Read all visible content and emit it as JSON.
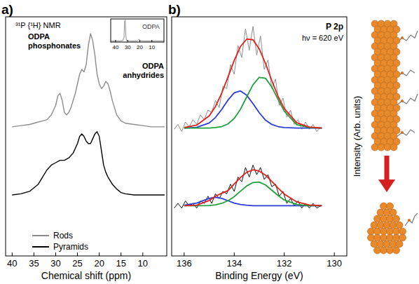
{
  "chart_data": [
    {
      "type": "line",
      "panel_label": "a)",
      "x_label": "Chemical shift (ppm)",
      "annotations": [
        "³¹P {¹H} NMR",
        "ODPA phosphonates",
        "ODPA anhydrides"
      ],
      "xlim": [
        41.5,
        4.5
      ],
      "xticks": [
        40,
        35,
        30,
        25,
        20,
        15,
        10
      ],
      "ylim": [
        0,
        1
      ],
      "grid": false,
      "legend": "bottom-left",
      "tick_labels": "x",
      "series": [
        {
          "name": "Rods",
          "color": "#8c8c8c",
          "x": [
            40,
            38,
            36,
            34,
            33,
            32,
            31,
            30,
            29.5,
            29,
            28.5,
            28,
            27.5,
            27,
            26.5,
            26,
            25.5,
            25,
            24.5,
            24,
            23.5,
            23,
            22.5,
            22,
            21.5,
            21,
            20.5,
            20,
            19.5,
            19,
            18.5,
            18,
            17.5,
            17,
            16.5,
            16,
            15,
            14,
            12,
            10,
            8,
            6,
            5
          ],
          "values": [
            0.54,
            0.545,
            0.55,
            0.56,
            0.565,
            0.57,
            0.59,
            0.63,
            0.67,
            0.68,
            0.65,
            0.6,
            0.59,
            0.6,
            0.62,
            0.65,
            0.68,
            0.72,
            0.76,
            0.78,
            0.77,
            0.8,
            0.88,
            0.93,
            0.9,
            0.84,
            0.76,
            0.72,
            0.7,
            0.71,
            0.73,
            0.72,
            0.69,
            0.65,
            0.62,
            0.59,
            0.565,
            0.555,
            0.55,
            0.545,
            0.54,
            0.54,
            0.54
          ]
        },
        {
          "name": "Pyramids",
          "color": "#000000",
          "x": [
            40,
            38,
            36,
            34,
            33,
            32,
            31,
            30,
            29,
            28,
            27,
            26,
            25,
            24.5,
            24,
            23.5,
            23,
            22.5,
            22,
            21.5,
            21,
            20.5,
            20,
            19.5,
            19,
            18.5,
            18,
            17,
            16,
            15,
            14,
            12,
            10,
            8,
            5
          ],
          "values": [
            0.255,
            0.26,
            0.27,
            0.3,
            0.33,
            0.36,
            0.38,
            0.39,
            0.4,
            0.4,
            0.41,
            0.43,
            0.47,
            0.5,
            0.51,
            0.5,
            0.48,
            0.47,
            0.47,
            0.49,
            0.51,
            0.52,
            0.5,
            0.44,
            0.38,
            0.35,
            0.33,
            0.3,
            0.28,
            0.265,
            0.26,
            0.255,
            0.255,
            0.255,
            0.255
          ]
        }
      ]
    },
    {
      "type": "line",
      "title": "ODPA",
      "xlim": [
        44,
        0
      ],
      "xticks": [
        40,
        30,
        20,
        10
      ],
      "ylim": [
        0,
        1
      ],
      "grid": false,
      "tick_labels": "x",
      "series": [
        {
          "color": "#8c8c8c",
          "x": [
            44,
            36,
            34,
            33,
            32.5,
            32,
            31.5,
            31,
            28,
            22,
            21,
            20.5,
            20,
            15,
            10,
            0
          ],
          "values": [
            0.05,
            0.05,
            0.06,
            0.2,
            0.9,
            0.95,
            0.3,
            0.07,
            0.05,
            0.05,
            0.1,
            0.12,
            0.06,
            0.05,
            0.05,
            0.05
          ]
        }
      ]
    },
    {
      "type": "line",
      "panel_label": "b)",
      "x_label": "Binding Energy (eV)",
      "y_label": "Intensity (Arb. units)",
      "annotations": [
        "P 2p",
        "hν = 620 eV"
      ],
      "xlim": [
        136.5,
        129.5
      ],
      "xticks": [
        136,
        134,
        132,
        130
      ],
      "ylim": [
        0,
        1
      ],
      "grid": false,
      "tick_labels": "x",
      "series": [
        {
          "color": "#8c8c8c",
          "x": [
            136.4,
            136.25,
            136.1,
            135.95,
            135.8,
            135.65,
            135.5,
            135.35,
            135.2,
            135.05,
            134.9,
            134.75,
            134.6,
            134.45,
            134.3,
            134.15,
            134.0,
            133.85,
            133.7,
            133.55,
            133.4,
            133.25,
            133.1,
            132.95,
            132.8,
            132.65,
            132.5,
            132.35,
            132.2,
            132.05,
            131.9,
            131.75,
            131.6,
            131.45,
            131.3,
            131.15,
            131.0,
            130.85,
            130.7,
            130.55
          ],
          "values": [
            0.53,
            0.55,
            0.52,
            0.56,
            0.54,
            0.57,
            0.55,
            0.59,
            0.57,
            0.61,
            0.6,
            0.65,
            0.62,
            0.71,
            0.7,
            0.8,
            0.76,
            0.88,
            0.83,
            0.95,
            0.86,
            0.96,
            0.84,
            0.92,
            0.78,
            0.82,
            0.7,
            0.74,
            0.63,
            0.66,
            0.58,
            0.61,
            0.55,
            0.57,
            0.53,
            0.56,
            0.53,
            0.55,
            0.52,
            0.54
          ]
        },
        {
          "color": "#111111",
          "x": [
            136.4,
            136.25,
            136.1,
            135.95,
            135.8,
            135.65,
            135.5,
            135.35,
            135.2,
            135.05,
            134.9,
            134.75,
            134.6,
            134.45,
            134.3,
            134.15,
            134.0,
            133.85,
            133.7,
            133.55,
            133.4,
            133.25,
            133.1,
            132.95,
            132.8,
            132.65,
            132.5,
            132.35,
            132.2,
            132.05,
            131.9,
            131.75,
            131.6,
            131.45,
            131.3,
            131.15,
            131.0,
            130.85,
            130.7,
            130.55
          ],
          "values": [
            0.2,
            0.22,
            0.2,
            0.23,
            0.21,
            0.22,
            0.2,
            0.23,
            0.22,
            0.25,
            0.22,
            0.26,
            0.24,
            0.27,
            0.26,
            0.3,
            0.27,
            0.33,
            0.31,
            0.37,
            0.33,
            0.38,
            0.34,
            0.37,
            0.32,
            0.34,
            0.29,
            0.3,
            0.25,
            0.27,
            0.22,
            0.24,
            0.21,
            0.23,
            0.2,
            0.22,
            0.2,
            0.22,
            0.2,
            0.21
          ]
        },
        {
          "color": "#2b3cd8",
          "x": [
            136,
            135.5,
            135,
            134.75,
            134.5,
            134.25,
            134,
            133.75,
            133.5,
            133.25,
            133,
            132.75,
            132.5,
            132.25,
            132,
            131.5,
            131,
            130.5
          ],
          "values": [
            0.535,
            0.538,
            0.556,
            0.579,
            0.613,
            0.652,
            0.682,
            0.69,
            0.672,
            0.637,
            0.599,
            0.568,
            0.55,
            0.541,
            0.537,
            0.535,
            0.535,
            0.535
          ]
        },
        {
          "color": "#1fa03a",
          "x": [
            136,
            135.5,
            135,
            134.75,
            134.5,
            134.25,
            134,
            133.75,
            133.5,
            133.25,
            133,
            132.75,
            132.5,
            132.25,
            132,
            131.5,
            131,
            130.5
          ],
          "values": [
            0.535,
            0.535,
            0.535,
            0.537,
            0.541,
            0.552,
            0.575,
            0.614,
            0.665,
            0.716,
            0.747,
            0.743,
            0.707,
            0.655,
            0.605,
            0.549,
            0.537,
            0.535
          ]
        },
        {
          "color": "#e0201c",
          "x": [
            136,
            135.5,
            135,
            134.75,
            134.5,
            134.25,
            134,
            133.75,
            133.5,
            133.25,
            133,
            132.75,
            132.5,
            132.25,
            132,
            131.5,
            131,
            130.5
          ],
          "values": [
            0.537,
            0.547,
            0.586,
            0.625,
            0.681,
            0.748,
            0.818,
            0.876,
            0.907,
            0.904,
            0.866,
            0.805,
            0.734,
            0.668,
            0.616,
            0.557,
            0.539,
            0.535
          ]
        },
        {
          "color": "#2b3cd8",
          "x": [
            136,
            135.5,
            135,
            134.75,
            134.5,
            134.25,
            134,
            133.75,
            133.5,
            133.25,
            133,
            132.75,
            132.5,
            132.25,
            132,
            131.5,
            131,
            130.5
          ],
          "values": [
            0.212,
            0.221,
            0.241,
            0.245,
            0.241,
            0.231,
            0.221,
            0.215,
            0.212,
            0.21,
            0.21,
            0.21,
            0.21,
            0.21,
            0.21,
            0.21,
            0.21,
            0.21
          ]
        },
        {
          "color": "#1fa03a",
          "x": [
            136,
            135.5,
            135,
            134.75,
            134.5,
            134.25,
            134,
            133.75,
            133.5,
            133.25,
            133,
            132.75,
            132.5,
            132.25,
            132,
            131.5,
            131,
            130.5
          ],
          "values": [
            0.21,
            0.21,
            0.211,
            0.214,
            0.22,
            0.231,
            0.248,
            0.271,
            0.293,
            0.307,
            0.309,
            0.297,
            0.275,
            0.253,
            0.234,
            0.215,
            0.21,
            0.21
          ]
        },
        {
          "color": "#e0201c",
          "x": [
            136,
            135.5,
            135,
            134.75,
            134.5,
            134.25,
            134,
            133.75,
            133.5,
            133.25,
            133,
            132.75,
            132.5,
            132.25,
            132,
            131.5,
            131,
            130.5
          ],
          "values": [
            0.21,
            0.212,
            0.232,
            0.25,
            0.262,
            0.273,
            0.301,
            0.328,
            0.35,
            0.36,
            0.355,
            0.338,
            0.312,
            0.284,
            0.259,
            0.226,
            0.213,
            0.21
          ]
        }
      ]
    }
  ]
}
